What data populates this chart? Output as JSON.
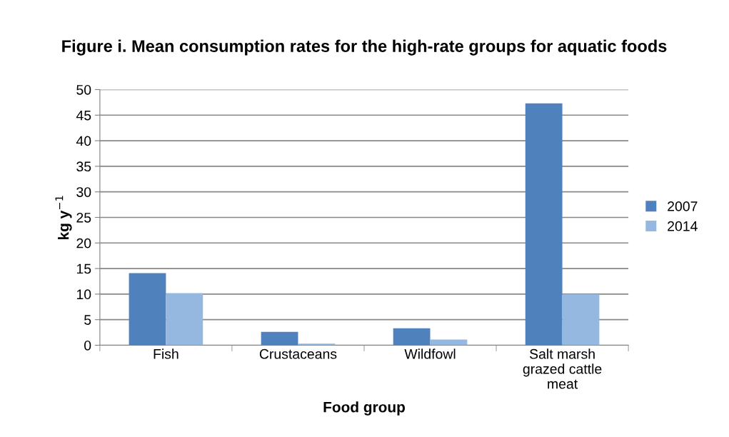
{
  "chart_data": {
    "type": "bar",
    "title": "Figure i. Mean consumption rates for the high-rate groups for aquatic foods",
    "xlabel": "Food group",
    "ylabel": "kg y$^{−1}$",
    "categories": [
      "Fish",
      "Crustaceans",
      "Wildfowl",
      "Salt marsh\ngrazed cattle\nmeat"
    ],
    "series": [
      {
        "name": "2007",
        "color": "#4f81bd",
        "values": [
          14.1,
          2.6,
          3.3,
          47.3
        ]
      },
      {
        "name": "2014",
        "color": "#95b8e0",
        "values": [
          10.2,
          0.3,
          1.1,
          10.0
        ]
      }
    ],
    "ylim": [
      0,
      50
    ],
    "yticks": [
      0,
      5,
      10,
      15,
      20,
      25,
      30,
      35,
      40,
      45,
      50
    ],
    "grid": "y",
    "legend": "right"
  }
}
